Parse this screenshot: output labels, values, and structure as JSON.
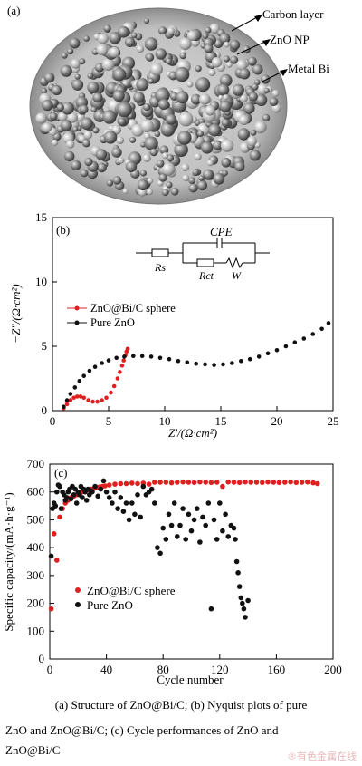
{
  "panel_a": {
    "label": "(a)",
    "annotations": [
      "Carbon layer",
      "ZnO NP",
      "Metal Bi"
    ]
  },
  "caption": {
    "line1": "(a) Structure of ZnO@Bi/C; (b) Nyquist plots of pure",
    "line2": "ZnO and ZnO@Bi/C; (c) Cycle performances of ZnO and",
    "line3": "ZnO@Bi/C"
  },
  "watermark": "®有色金属在线",
  "colors": {
    "red": "#e02020",
    "black": "#111111"
  },
  "chart_data": [
    {
      "type": "scatter",
      "panel_label": "(b)",
      "title": "",
      "xlabel": "Z′/(Ω·cm²)",
      "ylabel": "−Z″/(Ω·cm²)",
      "xlim": [
        0,
        25
      ],
      "ylim": [
        0,
        15
      ],
      "xticks": [
        "0",
        "5",
        "10",
        "15",
        "20",
        "25"
      ],
      "yticks": [
        "0",
        "5",
        "10",
        "15"
      ],
      "legend": "upper-left",
      "circuit_labels": {
        "cpe": "CPE",
        "rs": "Rs",
        "rct": "Rct",
        "w": "W"
      },
      "series": [
        {
          "name": "ZnO@Bi/C sphere",
          "color": "#e02020",
          "x": [
            1.0,
            1.3,
            1.6,
            1.9,
            2.2,
            2.5,
            2.8,
            3.2,
            3.6,
            4.0,
            4.4,
            4.8,
            5.2,
            5.5,
            5.8,
            6.0,
            6.2,
            6.35,
            6.5,
            6.6,
            6.7
          ],
          "y": [
            0.2,
            0.5,
            0.8,
            1.0,
            1.1,
            1.1,
            1.0,
            0.8,
            0.7,
            0.7,
            0.8,
            1.0,
            1.4,
            1.9,
            2.5,
            3.0,
            3.5,
            3.9,
            4.3,
            4.6,
            4.8
          ]
        },
        {
          "name": "Pure ZnO",
          "color": "#111111",
          "x": [
            1.0,
            1.3,
            1.6,
            2.0,
            2.4,
            2.8,
            3.3,
            3.8,
            4.4,
            5.0,
            5.7,
            6.4,
            7.2,
            8.0,
            8.8,
            9.6,
            10.4,
            11.2,
            12.0,
            12.8,
            13.6,
            14.4,
            15.2,
            16.0,
            16.8,
            17.6,
            18.4,
            19.2,
            20.0,
            20.8,
            21.6,
            22.4,
            23.2,
            24.0,
            24.6
          ],
          "y": [
            0.3,
            0.8,
            1.3,
            1.8,
            2.3,
            2.7,
            3.1,
            3.4,
            3.7,
            3.9,
            4.1,
            4.2,
            4.25,
            4.25,
            4.2,
            4.1,
            4.0,
            3.85,
            3.75,
            3.65,
            3.6,
            3.55,
            3.6,
            3.7,
            3.85,
            4.0,
            4.2,
            4.45,
            4.7,
            5.0,
            5.3,
            5.6,
            5.95,
            6.35,
            6.8
          ]
        }
      ]
    },
    {
      "type": "scatter",
      "panel_label": "(c)",
      "title": "",
      "xlabel": "Cycle number",
      "ylabel": "Specific capacity/(mA·h·g⁻¹)",
      "xlim": [
        0,
        200
      ],
      "ylim": [
        0,
        700
      ],
      "xticks": [
        "0",
        "40",
        "80",
        "120",
        "160",
        "200"
      ],
      "yticks": [
        "0",
        "100",
        "200",
        "300",
        "400",
        "500",
        "600",
        "700"
      ],
      "legend": "lower-left",
      "series": [
        {
          "name": "ZnO@Bi/C sphere",
          "color": "#e02020",
          "x": [
            1,
            3,
            5,
            7,
            9,
            11,
            13,
            15,
            17,
            19,
            21,
            23,
            25,
            27,
            29,
            31,
            33,
            35,
            37,
            39,
            42,
            46,
            50,
            54,
            58,
            62,
            66,
            70,
            74,
            78,
            82,
            86,
            90,
            94,
            98,
            102,
            106,
            110,
            114,
            118,
            122,
            126,
            130,
            134,
            138,
            142,
            146,
            150,
            154,
            158,
            162,
            166,
            170,
            174,
            178,
            182,
            186,
            189
          ],
          "y": [
            180,
            450,
            355,
            510,
            540,
            560,
            570,
            580,
            585,
            590,
            595,
            600,
            605,
            608,
            610,
            612,
            615,
            618,
            620,
            622,
            625,
            628,
            630,
            630,
            632,
            630,
            632,
            628,
            635,
            635,
            635,
            633,
            635,
            636,
            635,
            634,
            636,
            635,
            634,
            635,
            620,
            636,
            635,
            634,
            636,
            635,
            635,
            634,
            636,
            635,
            634,
            635,
            636,
            634,
            635,
            636,
            633,
            630
          ]
        },
        {
          "name": "Pure ZnO",
          "color": "#111111",
          "x": [
            1,
            2,
            3,
            4,
            5,
            6,
            7,
            8,
            9,
            10,
            11,
            12,
            13,
            14,
            15,
            16,
            17,
            18,
            19,
            20,
            21,
            22,
            23,
            24,
            25,
            26,
            27,
            28,
            29,
            30,
            32,
            34,
            36,
            38,
            40,
            42,
            44,
            46,
            48,
            50,
            52,
            54,
            56,
            58,
            60,
            62,
            64,
            66,
            68,
            70,
            72,
            74,
            76,
            78,
            80,
            82,
            84,
            86,
            88,
            90,
            92,
            94,
            96,
            98,
            100,
            102,
            104,
            106,
            108,
            110,
            112,
            114,
            116,
            118,
            120,
            122,
            124,
            126,
            128,
            130,
            131,
            132,
            133,
            134,
            135,
            136,
            137,
            138,
            140
          ],
          "y": [
            370,
            540,
            560,
            550,
            600,
            625,
            620,
            540,
            600,
            590,
            570,
            580,
            600,
            610,
            575,
            620,
            590,
            610,
            560,
            600,
            590,
            620,
            580,
            610,
            600,
            570,
            610,
            590,
            605,
            600,
            620,
            585,
            610,
            640,
            600,
            580,
            560,
            600,
            540,
            580,
            530,
            560,
            500,
            560,
            520,
            590,
            510,
            620,
            590,
            600,
            610,
            560,
            400,
            380,
            470,
            430,
            520,
            480,
            560,
            440,
            480,
            540,
            430,
            520,
            460,
            500,
            540,
            420,
            510,
            480,
            560,
            180,
            500,
            430,
            560,
            460,
            520,
            440,
            480,
            470,
            430,
            350,
            310,
            260,
            220,
            200,
            180,
            150,
            210
          ]
        }
      ]
    }
  ]
}
